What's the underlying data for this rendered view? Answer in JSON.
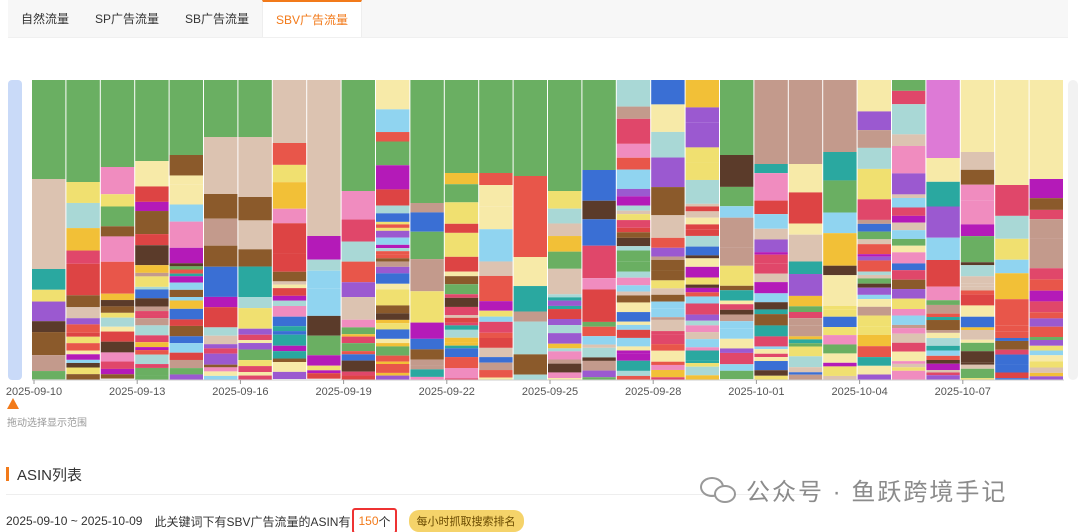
{
  "tabs": [
    {
      "label": "自然流量",
      "active": false
    },
    {
      "label": "SP广告流量",
      "active": false
    },
    {
      "label": "SB广告流量",
      "active": false
    },
    {
      "label": "SBV广告流量",
      "active": true
    }
  ],
  "chart": {
    "drag_hint": "拖动选择显示范围",
    "x_tick_labels": [
      "2025-09-10",
      "2025-09-13",
      "2025-09-16",
      "2025-09-19",
      "2025-09-22",
      "2025-09-25",
      "2025-09-28",
      "2025-10-01",
      "2025-10-04",
      "2025-10-07"
    ]
  },
  "chart_data": {
    "type": "bar",
    "stacked": true,
    "normalized_to": 100,
    "categories": [
      "2025-09-10",
      "2025-09-11",
      "2025-09-12",
      "2025-09-13",
      "2025-09-14",
      "2025-09-15",
      "2025-09-16",
      "2025-09-17",
      "2025-09-18",
      "2025-09-19",
      "2025-09-20",
      "2025-09-21",
      "2025-09-22",
      "2025-09-23",
      "2025-09-24",
      "2025-09-25",
      "2025-09-26",
      "2025-09-27",
      "2025-09-28",
      "2025-09-29",
      "2025-09-30",
      "2025-10-01",
      "2025-10-02",
      "2025-10-03",
      "2025-10-04",
      "2025-10-05",
      "2025-10-06",
      "2025-10-07",
      "2025-10-08",
      "2025-10-09"
    ],
    "top_segments": [
      {
        "color": "#6aaf62",
        "values": [
          33,
          34,
          29,
          27,
          25,
          19,
          19,
          0,
          0,
          0,
          0,
          0,
          0,
          0,
          0,
          0,
          0,
          0,
          0,
          0,
          0,
          0,
          0,
          0,
          0,
          0,
          0,
          0,
          0,
          0
        ]
      },
      {
        "color": "#dcc3b1",
        "values": [
          30,
          0,
          0,
          0,
          0,
          19,
          20,
          21,
          52,
          0,
          0,
          0,
          0,
          0,
          0,
          0,
          0,
          0,
          0,
          0,
          0,
          0,
          0,
          0,
          0,
          0,
          0,
          0,
          0,
          0
        ]
      },
      {
        "color": "#6aaf62",
        "values": [
          0,
          0,
          0,
          0,
          0,
          0,
          0,
          0,
          0,
          37,
          0,
          41,
          31,
          31,
          32,
          37,
          30,
          0,
          0,
          0,
          0,
          0,
          0,
          0,
          0,
          0,
          0,
          0,
          0,
          0
        ]
      },
      {
        "color": "#e0476a",
        "values": [
          0,
          0,
          0,
          0,
          0,
          0,
          0,
          0,
          0,
          0,
          0,
          0,
          0,
          0,
          0,
          0,
          0,
          0,
          0,
          0,
          0,
          0,
          0,
          0,
          0,
          0,
          0,
          0,
          0,
          0
        ]
      },
      {
        "color": "#e8564a",
        "values": [
          0,
          0,
          0,
          0,
          0,
          0,
          0,
          0,
          0,
          0,
          0,
          0,
          0,
          0,
          27,
          0,
          0,
          0,
          0,
          0,
          0,
          0,
          0,
          0,
          0,
          0,
          0,
          0,
          0,
          0
        ]
      },
      {
        "color": "#6aaf62",
        "values": [
          0,
          0,
          0,
          0,
          0,
          0,
          0,
          0,
          0,
          0,
          0,
          0,
          0,
          0,
          0,
          0,
          0,
          0,
          0,
          0,
          25,
          0,
          0,
          0,
          0,
          0,
          0,
          0,
          0,
          0
        ]
      },
      {
        "color": "#c39a8c",
        "values": [
          0,
          0,
          0,
          0,
          0,
          0,
          0,
          0,
          0,
          0,
          0,
          0,
          0,
          0,
          0,
          0,
          0,
          0,
          0,
          0,
          0,
          28,
          28,
          24,
          0,
          0,
          0,
          0,
          0,
          0
        ]
      },
      {
        "color": "#dd7ad6",
        "values": [
          0,
          0,
          0,
          0,
          0,
          0,
          0,
          0,
          0,
          0,
          0,
          0,
          0,
          0,
          0,
          0,
          0,
          0,
          0,
          0,
          0,
          0,
          0,
          0,
          0,
          0,
          26,
          0,
          0,
          0
        ]
      },
      {
        "color": "#f7eaa8",
        "values": [
          0,
          0,
          0,
          0,
          0,
          0,
          0,
          0,
          0,
          0,
          0,
          0,
          0,
          0,
          0,
          0,
          0,
          0,
          0,
          0,
          0,
          0,
          0,
          0,
          0,
          0,
          0,
          24,
          35,
          33
        ]
      }
    ],
    "lower_segment_palette": [
      "#e0476a",
      "#6aaf62",
      "#a9d8d6",
      "#dcc3b1",
      "#f0e070",
      "#e8564a",
      "#b41ab8",
      "#8b5a2b",
      "#f2c037",
      "#9b59d0",
      "#2aa8a0",
      "#f08cbf",
      "#3a6fd4",
      "#f7eaa8",
      "#c39a8c",
      "#5b3b2a",
      "#90d4f0",
      "#d44"
    ],
    "ylim": [
      0,
      100
    ]
  },
  "asin_section": {
    "title": "ASIN列表",
    "date_range": "2025-09-10 ~ 2025-10-09",
    "summary_prefix": "此关键词下有SBV广告流量的ASIN有",
    "count": "150",
    "summary_suffix": "个",
    "hourly_badge": "每小时抓取搜索排名"
  },
  "watermark": {
    "text": "公众号 · 鱼跃跨境手记",
    "icon": "wechat-icon"
  }
}
